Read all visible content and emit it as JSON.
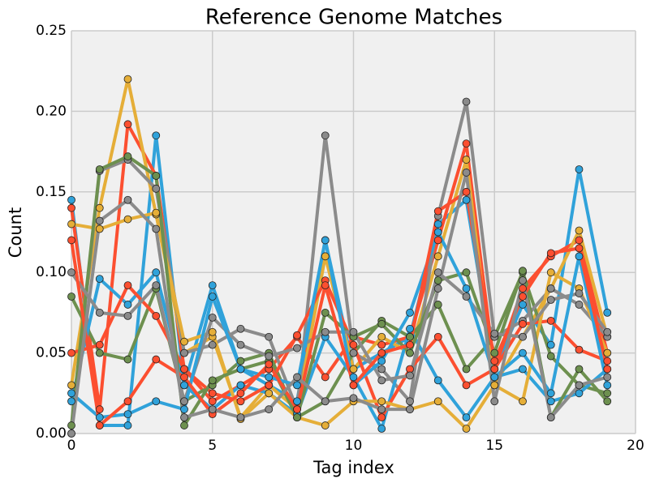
{
  "chart_data": {
    "type": "line",
    "title": "Reference Genome Matches",
    "x_label": "Tag index",
    "y_label": "Count",
    "x": [
      0,
      1,
      2,
      3,
      4,
      5,
      6,
      7,
      8,
      9,
      10,
      11,
      12,
      13,
      14,
      15,
      16,
      17,
      18,
      19
    ],
    "xlim": [
      0,
      20
    ],
    "xticks": [
      0,
      5,
      10,
      15,
      20
    ],
    "ylim": [
      0,
      0.25
    ],
    "yticks": [
      {
        "value": 0,
        "label": "0.00"
      },
      {
        "value": 0.05,
        "label": "0.05"
      },
      {
        "value": 0.1,
        "label": "0.10"
      },
      {
        "value": 0.15,
        "label": "0.15"
      },
      {
        "value": 0.2,
        "label": "0.20"
      },
      {
        "value": 0.25,
        "label": "0.25"
      }
    ],
    "grid": true,
    "series": [
      {
        "color": "#30a2da",
        "values": [
          0.145,
          0.005,
          0.005,
          0.185,
          0.03,
          0.092,
          0.04,
          0.03,
          0.02,
          0.12,
          0.04,
          0.05,
          0.06,
          0.13,
          0.145,
          0.04,
          0.08,
          0.055,
          0.164,
          0.075
        ]
      },
      {
        "color": "#fc4f30",
        "values": [
          0.14,
          0.015,
          0.192,
          0.16,
          0.04,
          0.02,
          0.03,
          0.04,
          0.06,
          0.035,
          0.06,
          0.055,
          0.06,
          0.12,
          0.18,
          0.04,
          0.09,
          0.11,
          0.12,
          0.05
        ]
      },
      {
        "color": "#e5ae38",
        "values": [
          0.03,
          0.14,
          0.22,
          0.136,
          0.05,
          0.06,
          0.01,
          0.03,
          0.015,
          0.11,
          0.04,
          0.06,
          0.05,
          0.11,
          0.17,
          0.03,
          0.06,
          0.09,
          0.126,
          0.06
        ]
      },
      {
        "color": "#6d904f",
        "values": [
          0.085,
          0.05,
          0.046,
          0.09,
          0.02,
          0.03,
          0.045,
          0.05,
          0.01,
          0.02,
          0.05,
          0.07,
          0.06,
          0.08,
          0.04,
          0.06,
          0.1,
          0.048,
          0.03,
          0.025
        ]
      },
      {
        "color": "#8b8b8b",
        "values": [
          0,
          0.163,
          0.17,
          0.152,
          0.05,
          0.055,
          0.065,
          0.06,
          0.015,
          0.185,
          0.05,
          0.04,
          0.02,
          0.135,
          0.206,
          0.06,
          0.07,
          0.09,
          0.08,
          0.06
        ]
      },
      {
        "color": "#30a2da",
        "values": [
          0.02,
          0.096,
          0.08,
          0.1,
          0.03,
          0.015,
          0.03,
          0.025,
          0.012,
          0.06,
          0.035,
          0.003,
          0.065,
          0.033,
          0.01,
          0.035,
          0.04,
          0.02,
          0.025,
          0.04
        ]
      },
      {
        "color": "#fc4f30",
        "values": [
          0.05,
          0.055,
          0.092,
          0.073,
          0.04,
          0.025,
          0.02,
          0.03,
          0.061,
          0.095,
          0.055,
          0.01,
          0.04,
          0.06,
          0.03,
          0.04,
          0.068,
          0.07,
          0.052,
          0.045
        ]
      },
      {
        "color": "#e5ae38",
        "values": [
          0.13,
          0.127,
          0.133,
          0.137,
          0.057,
          0.063,
          0.009,
          0.025,
          0.01,
          0.005,
          0.02,
          0.02,
          0.015,
          0.02,
          0.003,
          0.03,
          0.02,
          0.1,
          0.09,
          0.05
        ]
      },
      {
        "color": "#6d904f",
        "values": [
          0.005,
          0.164,
          0.172,
          0.16,
          0.005,
          0.033,
          0.04,
          0.045,
          0.01,
          0.075,
          0.06,
          0.068,
          0.05,
          0.095,
          0.1,
          0.05,
          0.101,
          0.01,
          0.04,
          0.02
        ]
      },
      {
        "color": "#8b8b8b",
        "values": [
          0.1,
          0.075,
          0.073,
          0.092,
          0.02,
          0.072,
          0.055,
          0.048,
          0.053,
          0.063,
          0.063,
          0.033,
          0.036,
          0.1,
          0.085,
          0.062,
          0.06,
          0.083,
          0.087,
          0.063
        ]
      },
      {
        "color": "#30a2da",
        "values": [
          0.025,
          0.01,
          0.012,
          0.02,
          0.015,
          0.085,
          0.04,
          0.035,
          0.03,
          0.12,
          0.03,
          0.045,
          0.075,
          0.125,
          0.09,
          0.035,
          0.05,
          0.025,
          0.11,
          0.03
        ]
      },
      {
        "color": "#fc4f30",
        "values": [
          0.12,
          0.005,
          0.02,
          0.046,
          0.035,
          0.012,
          0.025,
          0.043,
          0.015,
          0.092,
          0.03,
          0.05,
          0.055,
          0.138,
          0.15,
          0.045,
          0.085,
          0.112,
          0.115,
          0.04
        ]
      },
      {
        "color": "#8b8b8b",
        "values": [
          0,
          0.132,
          0.145,
          0.127,
          0.01,
          0.015,
          0.01,
          0.015,
          0.035,
          0.02,
          0.022,
          0.015,
          0.015,
          0.09,
          0.162,
          0.02,
          0.095,
          0.01,
          0.03,
          0.035
        ]
      }
    ]
  }
}
